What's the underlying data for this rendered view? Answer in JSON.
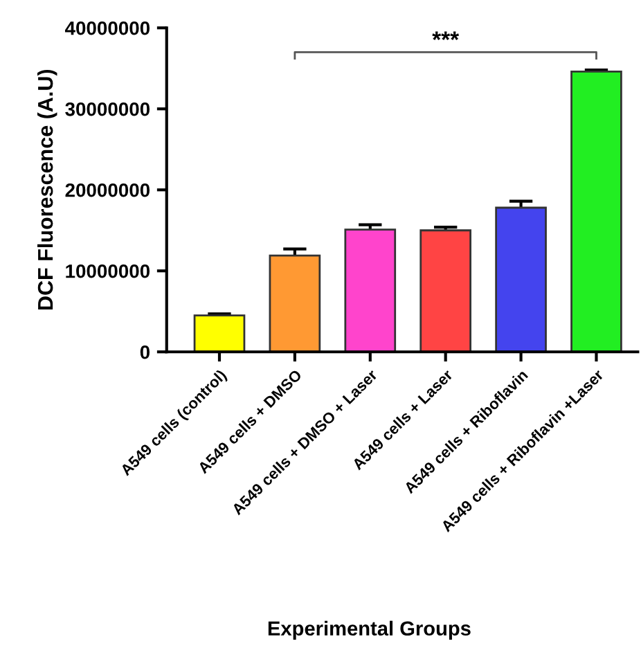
{
  "chart_data": {
    "type": "bar",
    "xlabel": "Experimental Groups",
    "ylabel": "DCF Fluorescence (A.U)",
    "categories": [
      "A549 cells (control)",
      "A549 cells + DMSO",
      "A549 cells + DMSO + Laser",
      "A549 cells + Laser",
      "A549 cells + Riboflavin",
      "A549 cells + Riboflavin +Laser"
    ],
    "values": [
      4500000,
      11900000,
      15100000,
      15000000,
      17800000,
      34600000
    ],
    "errors": [
      200000,
      800000,
      600000,
      400000,
      800000,
      200000
    ],
    "colors": [
      "#ffff00",
      "#ff9933",
      "#ff44cc",
      "#ff4444",
      "#4444ee",
      "#22ee22"
    ],
    "ylim": [
      0,
      40000000
    ],
    "yticks": [
      0,
      10000000,
      20000000,
      30000000,
      40000000
    ],
    "annotations": [
      "***"
    ],
    "grid": false,
    "legend": false
  }
}
